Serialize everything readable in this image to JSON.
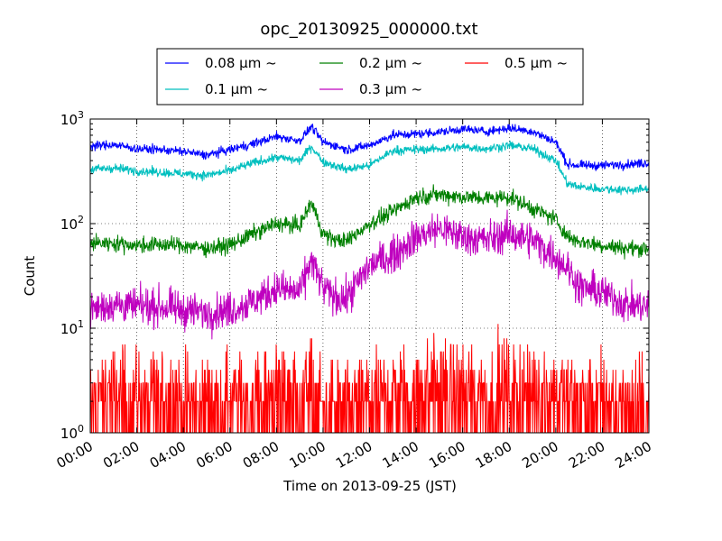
{
  "chart_data": {
    "type": "line",
    "title": "opc_20130925_000000.txt",
    "xlabel": "Time on 2013-09-25 (JST)",
    "ylabel": "Count",
    "yscale": "log",
    "ylim": [
      1,
      1000
    ],
    "xlim": [
      "00:00",
      "24:00"
    ],
    "x_ticks": [
      "00:00",
      "02:00",
      "04:00",
      "06:00",
      "08:00",
      "10:00",
      "12:00",
      "14:00",
      "16:00",
      "18:00",
      "20:00",
      "22:00",
      "24:00"
    ],
    "y_ticks": [
      {
        "value": 1,
        "base": "10",
        "exp": "0"
      },
      {
        "value": 10,
        "base": "10",
        "exp": "1"
      },
      {
        "value": 100,
        "base": "10",
        "exp": "2"
      },
      {
        "value": 1000,
        "base": "10",
        "exp": "3"
      }
    ],
    "grid": true,
    "legend_position": "top-center",
    "x_hours": [
      0,
      1,
      2,
      3,
      4,
      5,
      6,
      7,
      8,
      9,
      9.5,
      10,
      10.5,
      11,
      12,
      13,
      14,
      15,
      16,
      17,
      18,
      19,
      20,
      20.5,
      21,
      22,
      23,
      24
    ],
    "series": [
      {
        "name": "0.08 μm ~",
        "color": "#0000ff",
        "noise": 0.05,
        "values": [
          550,
          570,
          520,
          510,
          490,
          450,
          510,
          580,
          680,
          620,
          850,
          600,
          560,
          510,
          560,
          700,
          720,
          750,
          800,
          760,
          820,
          760,
          600,
          370,
          360,
          360,
          370,
          380
        ]
      },
      {
        "name": "0.1 μm ~",
        "color": "#00bfbf",
        "noise": 0.05,
        "values": [
          330,
          340,
          320,
          310,
          300,
          290,
          320,
          380,
          430,
          400,
          550,
          390,
          360,
          330,
          360,
          500,
          510,
          520,
          540,
          520,
          560,
          520,
          400,
          240,
          225,
          215,
          210,
          215
        ]
      },
      {
        "name": "0.2 μm ~",
        "color": "#008000",
        "noise": 0.09,
        "values": [
          65,
          65,
          62,
          63,
          62,
          58,
          62,
          80,
          100,
          95,
          160,
          80,
          70,
          68,
          100,
          130,
          180,
          190,
          180,
          175,
          180,
          140,
          110,
          75,
          68,
          62,
          58,
          58
        ]
      },
      {
        "name": "0.3 μm ~",
        "color": "#bf00bf",
        "noise": 0.2,
        "values": [
          15,
          17,
          16,
          16,
          15,
          14,
          15,
          18,
          24,
          22,
          45,
          24,
          20,
          19,
          40,
          50,
          75,
          90,
          75,
          70,
          80,
          70,
          48,
          38,
          25,
          22,
          17,
          16
        ]
      },
      {
        "name": "0.5 μm ~",
        "color": "#ff0000",
        "noise": 0.45,
        "values": [
          2.5,
          2.8,
          2.6,
          2.5,
          2.4,
          2.2,
          2.4,
          2.6,
          2.8,
          2.8,
          3.2,
          2.2,
          2.1,
          2.0,
          2.3,
          2.6,
          3.0,
          3.2,
          3.0,
          2.9,
          3.0,
          3.1,
          2.8,
          2.4,
          2.3,
          2.2,
          2.1,
          2.0
        ]
      }
    ]
  }
}
